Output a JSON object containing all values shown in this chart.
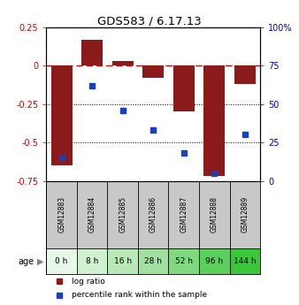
{
  "title": "GDS583 / 6.17.13",
  "samples": [
    "GSM12883",
    "GSM12884",
    "GSM12885",
    "GSM12886",
    "GSM12887",
    "GSM12888",
    "GSM12889"
  ],
  "ages": [
    "0 h",
    "8 h",
    "16 h",
    "28 h",
    "52 h",
    "96 h",
    "144 h"
  ],
  "log_ratios": [
    -0.65,
    0.17,
    0.03,
    -0.08,
    -0.3,
    -0.72,
    -0.12
  ],
  "percentile_ranks": [
    15,
    62,
    46,
    33,
    18,
    5,
    30
  ],
  "bar_color": "#8B1A1A",
  "dot_color": "#1C3FBB",
  "ylim_left": [
    -0.75,
    0.25
  ],
  "ylim_right": [
    0,
    100
  ],
  "yticks_left": [
    0.25,
    0,
    -0.25,
    -0.5,
    -0.75
  ],
  "yticks_right": [
    100,
    75,
    50,
    25,
    0
  ],
  "ytick_labels_left": [
    "0.25",
    "0",
    "-0.25",
    "-0.5",
    "-0.75"
  ],
  "ytick_labels_right": [
    "100%",
    "75",
    "50",
    "25",
    "0"
  ],
  "age_colors": [
    "#e8f8e8",
    "#d0f0d0",
    "#b8e8b8",
    "#a0e0a0",
    "#80d880",
    "#5cd05c",
    "#3ac83a"
  ],
  "sample_bg_color": "#c8c8c8",
  "hline_color": "#cc0000",
  "dot_hline_color": "#990000",
  "grid_color": "#000000",
  "legend_red_label": "log ratio",
  "legend_blue_label": "percentile rank within the sample",
  "bar_width": 0.7,
  "left_axis_color": "#cc0000",
  "right_axis_color": "#0000cc"
}
